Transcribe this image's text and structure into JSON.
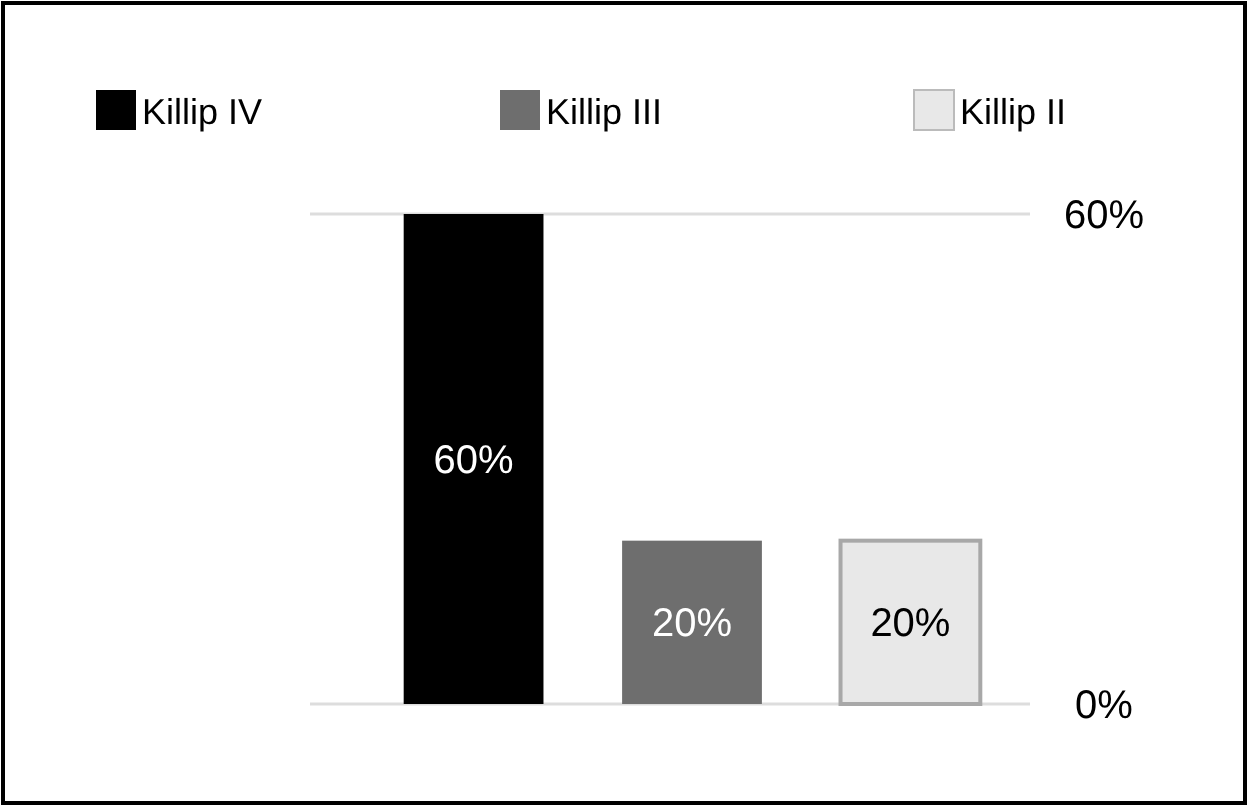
{
  "chart_data": {
    "type": "bar",
    "categories": [
      null,
      null,
      null
    ],
    "series": [
      {
        "name": "Killip IV",
        "color": "#000000",
        "values": [
          60,
          null,
          null
        ],
        "value_labels": [
          "60%",
          null,
          null
        ]
      },
      {
        "name": "Killip III",
        "color": "#6e6e6e",
        "values": [
          null,
          20,
          null
        ],
        "value_labels": [
          null,
          "20%",
          null
        ]
      },
      {
        "name": "Killip II",
        "color": "#e8e8e8",
        "values": [
          null,
          null,
          20
        ],
        "value_labels": [
          null,
          null,
          "20%"
        ]
      }
    ],
    "ylim": [
      0,
      60
    ],
    "yticks": [
      {
        "value": 0,
        "label": "0%"
      },
      {
        "value": 60,
        "label": "60%"
      }
    ],
    "grid": "y",
    "legend": "top",
    "tick_labels": "y"
  }
}
